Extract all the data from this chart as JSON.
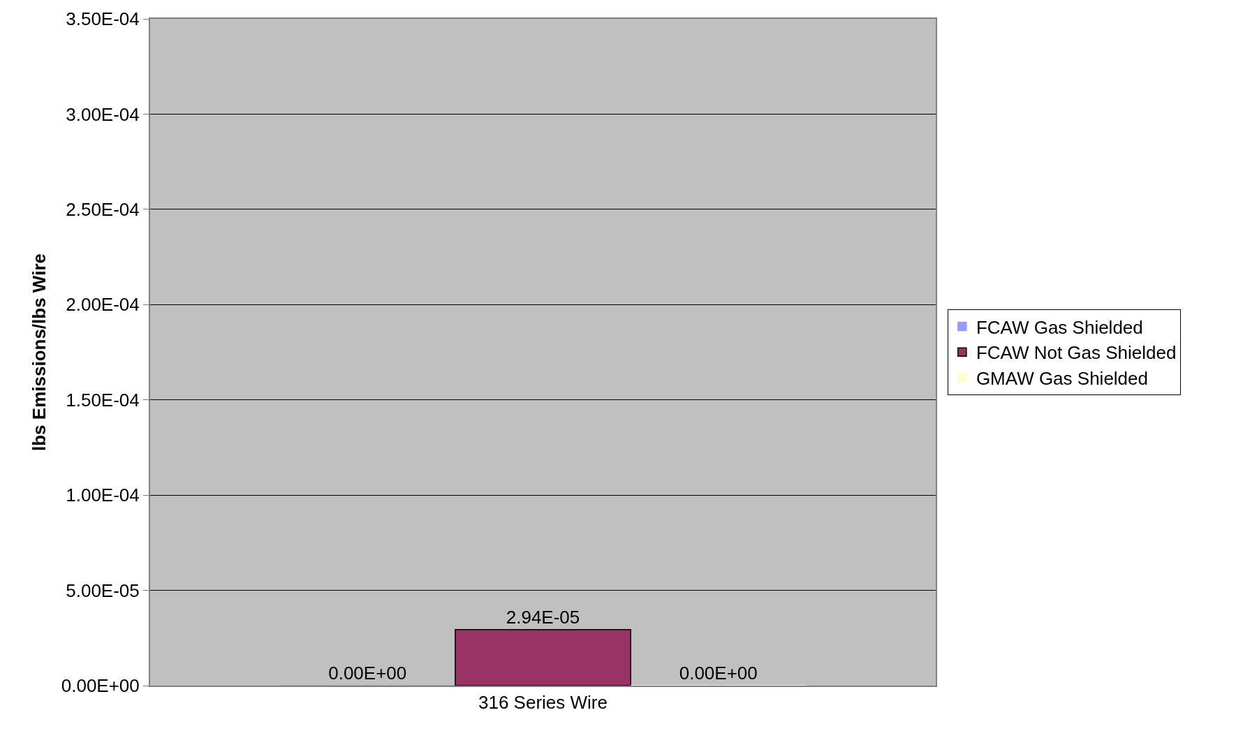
{
  "chart_data": {
    "type": "bar",
    "ylabel": "lbs Emissions/lbs Wire",
    "categories": [
      "316 Series Wire"
    ],
    "series": [
      {
        "name": "FCAW Gas Shielded",
        "color": "#9999ff",
        "values": [
          0
        ],
        "value_labels": [
          "0.00E+00"
        ]
      },
      {
        "name": "FCAW Not Gas Shielded",
        "color": "#993366",
        "values": [
          2.94e-05
        ],
        "value_labels": [
          "2.94E-05"
        ]
      },
      {
        "name": "GMAW Gas Shielded",
        "color": "#ffffcc",
        "values": [
          0
        ],
        "value_labels": [
          "0.00E+00"
        ]
      }
    ],
    "ylim": [
      0,
      0.00035
    ],
    "yticks": [
      {
        "value": 0,
        "label": "0.00E+00"
      },
      {
        "value": 5e-05,
        "label": "5.00E-05"
      },
      {
        "value": 0.0001,
        "label": "1.00E-04"
      },
      {
        "value": 0.00015,
        "label": "1.50E-04"
      },
      {
        "value": 0.0002,
        "label": "2.00E-04"
      },
      {
        "value": 0.00025,
        "label": "2.50E-04"
      },
      {
        "value": 0.0003,
        "label": "3.00E-04"
      },
      {
        "value": 0.00035,
        "label": "3.50E-04"
      }
    ],
    "grid": "y",
    "legend": "right"
  }
}
